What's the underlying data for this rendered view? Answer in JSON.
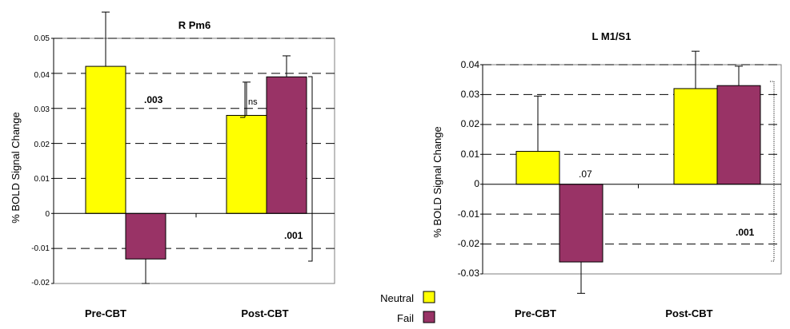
{
  "colors": {
    "neutral": "#ffff00",
    "fail": "#993366",
    "axis": "#000000",
    "grid": "#000000",
    "plot_border": "#7f7f7f"
  },
  "legend": {
    "items": [
      {
        "label": "Neutral",
        "color": "#ffff00"
      },
      {
        "label": "Fail",
        "color": "#993366"
      }
    ]
  },
  "chart_data": [
    {
      "type": "bar",
      "title": "R Pm6",
      "ylabel": "% BOLD Signal Change",
      "ylim": [
        -0.02,
        0.05
      ],
      "y_ticks": [
        "0.05",
        "0.04",
        "0.03",
        "0.02",
        "0.01",
        "0",
        "-0.01",
        "-0.02"
      ],
      "grid": "dashed",
      "categories": [
        "Pre-CBT",
        "Post-CBT"
      ],
      "series": [
        {
          "name": "Neutral",
          "values": [
            0.042,
            0.028
          ],
          "error": [
            0.0155,
            0.0095
          ]
        },
        {
          "name": "Fail",
          "values": [
            -0.013,
            0.039
          ],
          "error": [
            0.007,
            0.006
          ]
        }
      ],
      "annotations": [
        ".003",
        "ns",
        ".001"
      ]
    },
    {
      "type": "bar",
      "title": "L M1/S1",
      "ylabel": "% BOLD Signal Change",
      "ylim": [
        -0.03,
        0.04
      ],
      "y_ticks": [
        "0.04",
        "0.03",
        "0.02",
        "0.01",
        "0",
        "-0.01",
        "-0.02",
        "-0.03"
      ],
      "grid": "dashed",
      "categories": [
        "Pre-CBT",
        "Post-CBT"
      ],
      "series": [
        {
          "name": "Neutral",
          "values": [
            0.011,
            0.032
          ],
          "error": [
            0.0185,
            0.0125
          ]
        },
        {
          "name": "Fail",
          "values": [
            -0.026,
            0.033
          ],
          "error": [
            0.0105,
            0.0065
          ]
        }
      ],
      "annotations": [
        ".07",
        ".001"
      ]
    }
  ]
}
